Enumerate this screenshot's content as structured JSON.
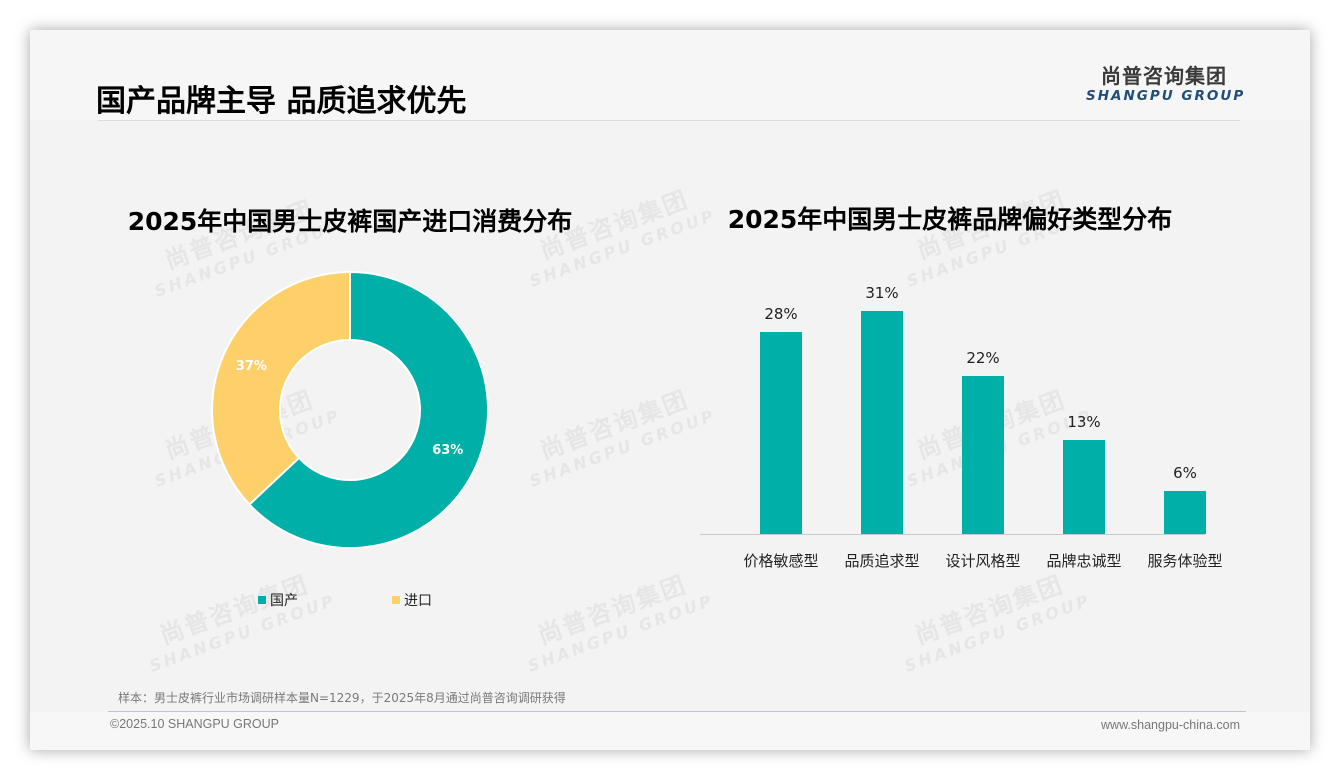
{
  "header": {
    "title": "国产品牌主导 品质追求优先",
    "logo_cn": "尚普咨询集团",
    "logo_en": "SHANGPU GROUP"
  },
  "watermark": {
    "cn": "尚普咨询集团",
    "en": "SHANGPU GROUP"
  },
  "colors": {
    "teal": "#00b0a8",
    "yellow": "#fdd06a",
    "logo_blue": "#1f4e79"
  },
  "chart_data": [
    {
      "type": "pie",
      "title": "2025年中国男士皮裤国产进口消费分布",
      "donut": true,
      "categories": [
        "国产",
        "进口"
      ],
      "values": [
        63,
        37
      ],
      "labels": [
        "63%",
        "37%"
      ],
      "colors": [
        "#00b0a8",
        "#fdd06a"
      ],
      "legend_position": "bottom"
    },
    {
      "type": "bar",
      "title": "2025年中国男士皮裤品牌偏好类型分布",
      "categories": [
        "价格敏感型",
        "品质追求型",
        "设计风格型",
        "品牌忠诚型",
        "服务体验型"
      ],
      "values": [
        28,
        31,
        22,
        13,
        6
      ],
      "labels": [
        "28%",
        "31%",
        "22%",
        "13%",
        "6%"
      ],
      "xlabel": "",
      "ylabel": "",
      "grid": false,
      "color": "#00b0a8"
    }
  ],
  "footer": {
    "sample_note": "样本：男士皮裤行业市场调研样本量N=1229，于2025年8月通过尚普咨询调研获得",
    "copyright": "©2025.10 SHANGPU GROUP",
    "website": "www.shangpu-china.com"
  }
}
